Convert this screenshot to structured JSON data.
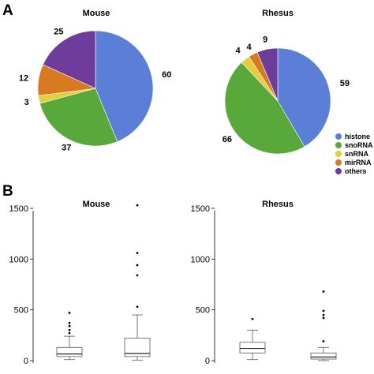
{
  "panels": {
    "a_letter": "A",
    "b_letter": "B"
  },
  "chart_data": [
    {
      "type": "pie",
      "panel": "A",
      "title": "Mouse",
      "categories": [
        "histone",
        "snoRNA",
        "snRNA",
        "mirRNA",
        "others"
      ],
      "values": [
        60,
        37,
        3,
        12,
        25
      ],
      "labels": [
        "60",
        "37",
        "3",
        "12",
        "25"
      ],
      "colors": [
        "#5b7fd6",
        "#58a83a",
        "#e2cf3a",
        "#d87a1f",
        "#6e3d9c"
      ],
      "legend": "bottom-right"
    },
    {
      "type": "pie",
      "panel": "A",
      "title": "Rhesus",
      "categories": [
        "histone",
        "snoRNA",
        "snRNA",
        "mirRNA",
        "others"
      ],
      "values": [
        59,
        66,
        4,
        4,
        9
      ],
      "labels": [
        "59",
        "66",
        "4",
        "4",
        "9"
      ],
      "colors": [
        "#5b7fd6",
        "#58a83a",
        "#e2cf3a",
        "#d87a1f",
        "#6e3d9c"
      ],
      "legend": "bottom-right"
    },
    {
      "type": "box",
      "panel": "B",
      "title": "Mouse",
      "categories": [
        "",
        ""
      ],
      "ylim": [
        0,
        1600
      ],
      "yticks": [
        0,
        500,
        1000,
        1500
      ],
      "boxes": [
        {
          "whisker_low": 10,
          "q1": 40,
          "median": 65,
          "q3": 130,
          "whisker_high": 240,
          "outliers": [
            270,
            300,
            340,
            370,
            470
          ]
        },
        {
          "whisker_low": 5,
          "q1": 40,
          "median": 70,
          "q3": 220,
          "whisker_high": 450,
          "outliers": [
            530,
            840,
            940,
            1060,
            1530
          ]
        }
      ]
    },
    {
      "type": "box",
      "panel": "B",
      "title": "Rhesus",
      "categories": [
        "",
        ""
      ],
      "ylim": [
        0,
        1600
      ],
      "yticks": [
        0,
        500,
        1000,
        1500
      ],
      "boxes": [
        {
          "whisker_low": 10,
          "q1": 75,
          "median": 120,
          "q3": 180,
          "whisker_high": 300,
          "outliers": [
            410
          ]
        },
        {
          "whisker_low": 0,
          "q1": 15,
          "median": 35,
          "q3": 75,
          "whisker_high": 130,
          "outliers": [
            190,
            420,
            450,
            490,
            680
          ]
        }
      ]
    }
  ]
}
